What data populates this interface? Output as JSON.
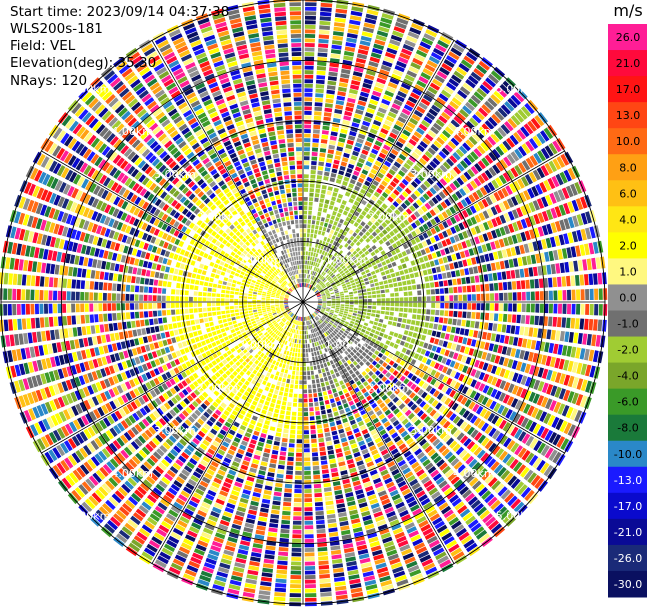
{
  "info": {
    "start_time": "Start time: 2023/09/14 04:37:38",
    "instrument": "WLS200s-181",
    "field": "Field: VEL",
    "elevation": "Elevation(deg): 35.30",
    "nrays": "NRays: 120"
  },
  "colorbar": {
    "unit": "m/s",
    "ticks": [
      "26.0",
      "21.0",
      "17.0",
      "13.0",
      "10.0",
      "8.0",
      "6.0",
      "4.0",
      "2.0",
      "1.0",
      "0.0",
      "-1.0",
      "-2.0",
      "-4.0",
      "-6.0",
      "-8.0",
      "-10.0",
      "-13.0",
      "-17.0",
      "-21.0",
      "-26.0",
      "-30.0"
    ],
    "colors": [
      "#ff1e96",
      "#ff0a3c",
      "#ff1414",
      "#ff4614",
      "#ff6a14",
      "#ffa014",
      "#ffc014",
      "#ffe614",
      "#ffff00",
      "#fff880",
      "#909090",
      "#707070",
      "#a0cc33",
      "#7aa62a",
      "#3a9a28",
      "#1a7a3a",
      "#2a88c8",
      "#1a1aff",
      "#0a0acd",
      "#0a0a96",
      "#1a2a78",
      "#0a1060"
    ]
  },
  "chart_data": {
    "type": "ppi",
    "field": "VEL",
    "unit": "m/s",
    "nrays": 120,
    "elevation_deg": 35.3,
    "range_rings_km": [
      1.0,
      2.0,
      3.0,
      4.0,
      5.0
    ],
    "ring_labels": [
      "1.00km",
      "2.00km",
      "3.00km",
      "4.00km",
      "5.00km"
    ],
    "max_range_km": 5.0,
    "spoke_azimuths_deg": [
      0,
      30,
      60,
      90,
      120,
      150,
      180,
      210,
      240,
      270,
      300,
      330
    ],
    "sectors": [
      {
        "azimuth_deg": [
          330,
          360
        ],
        "range_km": [
          0.3,
          1.4
        ],
        "dominant_vel": 0.0
      },
      {
        "azimuth_deg": [
          0,
          120
        ],
        "range_km": [
          0.3,
          2.2
        ],
        "dominant_vel": -2.0
      },
      {
        "azimuth_deg": [
          120,
          180
        ],
        "range_km": [
          0.3,
          1.5
        ],
        "dominant_vel": -1.0
      },
      {
        "azimuth_deg": [
          180,
          330
        ],
        "range_km": [
          0.3,
          2.3
        ],
        "dominant_vel": 2.0
      },
      {
        "azimuth_deg": [
          0,
          360
        ],
        "range_km": [
          2.3,
          5.0
        ],
        "dominant_vel": "noise"
      }
    ]
  }
}
